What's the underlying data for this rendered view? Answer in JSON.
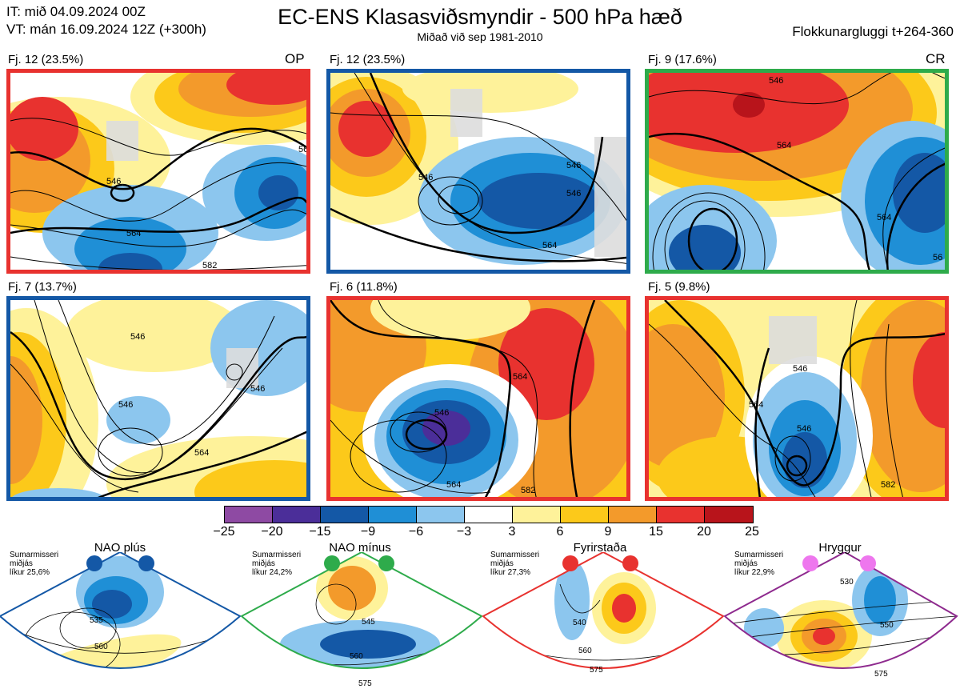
{
  "header": {
    "init_time": "IT: mið 04.09.2024 00Z",
    "valid_time": "VT: mán 16.09.2024 12Z  (+300h)",
    "title": "EC-ENS Klasasviðsmyndir - 500 hPa hæð",
    "subtitle": "Miðað við sep 1981-2010",
    "window": "Flokkunargluggi t+264-360"
  },
  "panels": [
    {
      "label": "Fj. 12 (23.5%)",
      "tag": "OP",
      "border": "#e8322f",
      "contours": [
        "546",
        "564",
        "56",
        "582"
      ]
    },
    {
      "label": "Fj. 12 (23.5%)",
      "tag": "",
      "border": "#1458a6",
      "contours": [
        "546",
        "546",
        "564",
        "546"
      ]
    },
    {
      "label": "Fj. 9 (17.6%)",
      "tag": "CR",
      "border": "#2eab4b",
      "contours": [
        "546",
        "564",
        "564",
        "56"
      ]
    },
    {
      "label": "Fj. 7 (13.7%)",
      "tag": "",
      "border": "#1458a6",
      "contours": [
        "546",
        "546",
        "546",
        "564"
      ]
    },
    {
      "label": "Fj. 6 (11.8%)",
      "tag": "",
      "border": "#e8322f",
      "contours": [
        "546",
        "564",
        "564",
        "582"
      ]
    },
    {
      "label": "Fj. 5 (9.8%)",
      "tag": "",
      "border": "#e8322f",
      "contours": [
        "546",
        "546",
        "564",
        "582"
      ]
    }
  ],
  "colorbar": {
    "colors": [
      "#8e4aa3",
      "#4b2e99",
      "#1458a6",
      "#1f8fd6",
      "#8cc6ee",
      "#ffffff",
      "#fef29a",
      "#fcc91a",
      "#f39a2b",
      "#e8322f",
      "#b8141b"
    ],
    "ticks": [
      "−25",
      "−20",
      "−15",
      "−9",
      "−6",
      "−3",
      "3",
      "6",
      "9",
      "15",
      "20",
      "25"
    ]
  },
  "regimes": [
    {
      "name": "NAO plús",
      "season": "Sumarmisseri",
      "ref": "miðjás",
      "prob": "líkur 25,6%",
      "dot": "#1458a6",
      "border": "#1458a6",
      "contours": [
        "535",
        "560"
      ]
    },
    {
      "name": "NAO mínus",
      "season": "Sumarmisseri",
      "ref": "miðjás",
      "prob": "líkur 24,2%",
      "dot": "#2eab4b",
      "border": "#2eab4b",
      "contours": [
        "545",
        "560",
        "575"
      ]
    },
    {
      "name": "Fyrirstaða",
      "season": "Sumarmisseri",
      "ref": "miðjás",
      "prob": "líkur 27,3%",
      "dot": "#e8322f",
      "border": "#e8322f",
      "contours": [
        "540",
        "560",
        "575"
      ]
    },
    {
      "name": "Hryggur",
      "season": "Sumarmisseri",
      "ref": "miðjás",
      "prob": "líkur 22,9%",
      "dot": "#ee77ee",
      "border": "#8e2a8e",
      "contours": [
        "530",
        "550",
        "575"
      ]
    }
  ]
}
